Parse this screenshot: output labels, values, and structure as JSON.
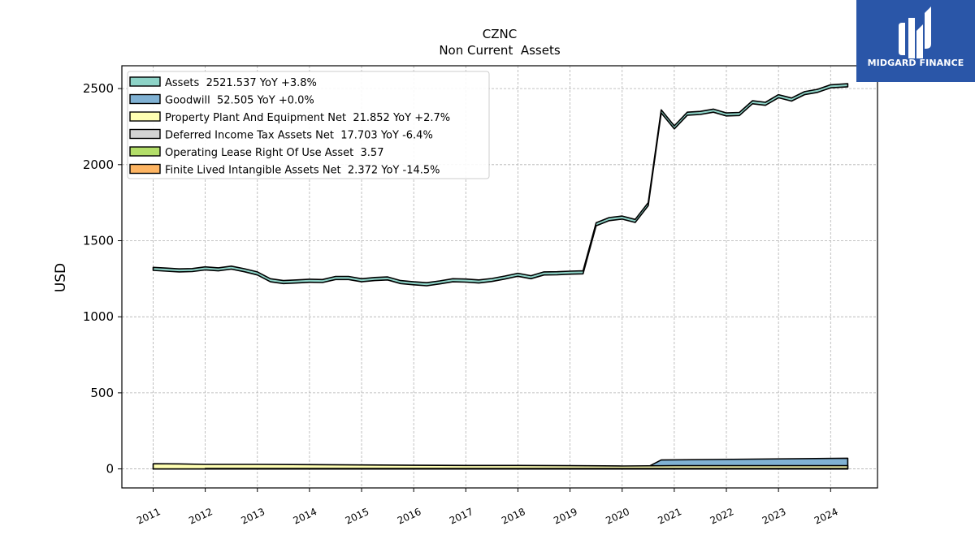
{
  "brand": {
    "name": "MIDGARD FINANCE"
  },
  "chart_data": {
    "type": "area",
    "title": "CZNC",
    "subtitle": "Non Current  Assets",
    "xlabel": "",
    "ylabel": "USD",
    "ylim": [
      -125,
      2650
    ],
    "xlim": [
      2010.4,
      2024.9
    ],
    "yticks": [
      0,
      500,
      1000,
      1500,
      2000,
      2500
    ],
    "xticks": [
      "2011",
      "2012",
      "2013",
      "2014",
      "2015",
      "2016",
      "2017",
      "2018",
      "2019",
      "2020",
      "2021",
      "2022",
      "2023",
      "2024"
    ],
    "grid": true,
    "legend_position": "top-left",
    "series": [
      {
        "name": "Assets",
        "legend": "Assets  2521.537 YoY +3.8%",
        "color": "#8dd3c7",
        "band": 10,
        "points": [
          [
            2011.0,
            1315
          ],
          [
            2011.25,
            1310
          ],
          [
            2011.5,
            1305
          ],
          [
            2011.75,
            1307
          ],
          [
            2012.0,
            1318
          ],
          [
            2012.25,
            1312
          ],
          [
            2012.5,
            1323
          ],
          [
            2012.75,
            1306
          ],
          [
            2013.0,
            1285
          ],
          [
            2013.25,
            1240
          ],
          [
            2013.5,
            1228
          ],
          [
            2013.75,
            1232
          ],
          [
            2014.0,
            1237
          ],
          [
            2014.25,
            1235
          ],
          [
            2014.5,
            1255
          ],
          [
            2014.75,
            1255
          ],
          [
            2015.0,
            1240
          ],
          [
            2015.25,
            1248
          ],
          [
            2015.5,
            1252
          ],
          [
            2015.75,
            1228
          ],
          [
            2016.0,
            1220
          ],
          [
            2016.25,
            1214
          ],
          [
            2016.5,
            1226
          ],
          [
            2016.75,
            1240
          ],
          [
            2017.0,
            1238
          ],
          [
            2017.25,
            1232
          ],
          [
            2017.5,
            1242
          ],
          [
            2017.75,
            1258
          ],
          [
            2018.0,
            1276
          ],
          [
            2018.25,
            1260
          ],
          [
            2018.5,
            1285
          ],
          [
            2018.75,
            1286
          ],
          [
            2019.0,
            1290
          ],
          [
            2019.25,
            1292
          ],
          [
            2019.5,
            1608
          ],
          [
            2019.75,
            1642
          ],
          [
            2020.0,
            1652
          ],
          [
            2020.25,
            1630
          ],
          [
            2020.5,
            1740
          ],
          [
            2020.75,
            2350
          ],
          [
            2021.0,
            2245
          ],
          [
            2021.25,
            2335
          ],
          [
            2021.5,
            2340
          ],
          [
            2021.75,
            2355
          ],
          [
            2022.0,
            2330
          ],
          [
            2022.25,
            2333
          ],
          [
            2022.5,
            2410
          ],
          [
            2022.75,
            2400
          ],
          [
            2023.0,
            2450
          ],
          [
            2023.25,
            2428
          ],
          [
            2023.5,
            2470
          ],
          [
            2023.75,
            2485
          ],
          [
            2024.0,
            2515
          ],
          [
            2024.33,
            2522
          ]
        ]
      },
      {
        "name": "Goodwill",
        "legend": "Goodwill  52.505 YoY +0.0%",
        "color": "#80b1d3",
        "stacked_on": "Deferred Income Tax Assets Net",
        "points": [
          [
            2019.0,
            2
          ],
          [
            2019.5,
            11
          ],
          [
            2020.0,
            11
          ],
          [
            2020.5,
            11
          ],
          [
            2020.75,
            52.5
          ],
          [
            2024.33,
            52.5
          ]
        ]
      },
      {
        "name": "Property Plant And Equipment Net",
        "legend": "Property Plant And Equipment Net  21.852 YoY +2.7%",
        "color": "#ffffb3",
        "points": [
          [
            2011.0,
            34
          ],
          [
            2011.5,
            33
          ],
          [
            2012.0,
            30
          ],
          [
            2013.0,
            30
          ],
          [
            2014.0,
            28
          ],
          [
            2015.0,
            26
          ],
          [
            2016.0,
            24
          ],
          [
            2017.0,
            23
          ],
          [
            2018.0,
            23
          ],
          [
            2019.0,
            21
          ],
          [
            2020.0,
            19
          ],
          [
            2021.0,
            21
          ],
          [
            2022.0,
            21
          ],
          [
            2023.0,
            21
          ],
          [
            2024.33,
            21.852
          ]
        ]
      },
      {
        "name": "Deferred Income Tax Assets Net",
        "legend": "Deferred Income Tax Assets Net  17.703 YoY -6.4%",
        "color": "#d3d3d3",
        "points": [
          [
            2011.0,
            0
          ],
          [
            2020.5,
            4
          ],
          [
            2021.0,
            8
          ],
          [
            2021.5,
            9
          ],
          [
            2022.0,
            12
          ],
          [
            2022.5,
            20
          ],
          [
            2023.0,
            19
          ],
          [
            2023.5,
            21
          ],
          [
            2024.0,
            19
          ],
          [
            2024.33,
            17.703
          ]
        ]
      },
      {
        "name": "Operating Lease Right Of Use Asset",
        "legend": "Operating Lease Right Of Use Asset  3.57",
        "color": "#b3de69",
        "points": [
          [
            2019.0,
            3.5
          ],
          [
            2020.0,
            3.6
          ],
          [
            2021.0,
            3.6
          ],
          [
            2022.0,
            3.6
          ],
          [
            2023.0,
            3.6
          ],
          [
            2024.33,
            3.57
          ]
        ]
      },
      {
        "name": "Finite Lived Intangible Assets Net",
        "legend": "Finite Lived Intangible Assets Net  2.372 YoY -14.5%",
        "color": "#fdb462",
        "points": [
          [
            2012.0,
            2.9
          ],
          [
            2015.0,
            2.8
          ],
          [
            2018.0,
            2.7
          ],
          [
            2021.0,
            2.6
          ],
          [
            2023.0,
            2.5
          ],
          [
            2024.33,
            2.372
          ]
        ]
      }
    ]
  }
}
